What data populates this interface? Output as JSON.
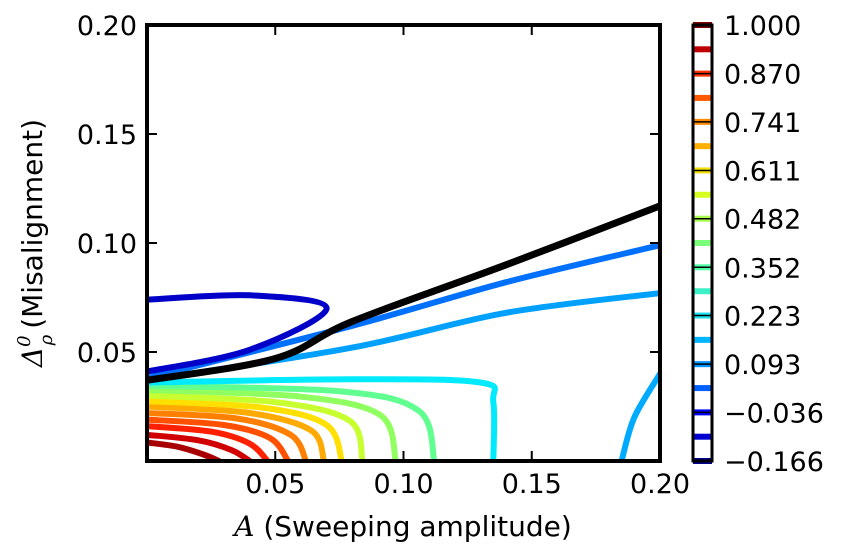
{
  "chart_data": {
    "type": "contour",
    "xlabel_math": "A",
    "xlabel_text": "(Sweeping amplitude)",
    "ylabel_math": "Δ",
    "ylabel_sup": "0",
    "ylabel_sub": "ρ",
    "ylabel_text": "(Misalignment)",
    "xlim": [
      0.0,
      0.2
    ],
    "ylim": [
      0.0,
      0.2
    ],
    "x_ticks": [
      0.05,
      0.1,
      0.15,
      0.2
    ],
    "x_tick_labels": [
      "0.05",
      "0.10",
      "0.15",
      "0.20"
    ],
    "y_ticks": [
      0.05,
      0.1,
      0.15,
      0.2
    ],
    "y_tick_labels": [
      "0.05",
      "0.10",
      "0.15",
      "0.20"
    ],
    "grid": false,
    "colorbar": {
      "tick_values": [
        1.0,
        0.87,
        0.741,
        0.611,
        0.482,
        0.352,
        0.223,
        0.093,
        -0.036,
        -0.166
      ],
      "tick_labels": [
        "1.000",
        "0.870",
        "0.741",
        "0.611",
        "0.482",
        "0.352",
        "0.223",
        "0.093",
        "−0.036",
        "−0.166"
      ],
      "levels": [
        {
          "value": 1.0,
          "color": "#7f0000"
        },
        {
          "value": 0.935,
          "color": "#c00000"
        },
        {
          "value": 0.87,
          "color": "#ff3000"
        },
        {
          "value": 0.805,
          "color": "#ff5a00"
        },
        {
          "value": 0.741,
          "color": "#ff8a00"
        },
        {
          "value": 0.676,
          "color": "#ffb000"
        },
        {
          "value": 0.611,
          "color": "#f4e000"
        },
        {
          "value": 0.546,
          "color": "#d6ff20"
        },
        {
          "value": 0.482,
          "color": "#a8ff4e"
        },
        {
          "value": 0.417,
          "color": "#7cff7a"
        },
        {
          "value": 0.352,
          "color": "#50ffa6"
        },
        {
          "value": 0.288,
          "color": "#3cf0c8"
        },
        {
          "value": 0.223,
          "color": "#1ee0f0"
        },
        {
          "value": 0.158,
          "color": "#00b4ff"
        },
        {
          "value": 0.093,
          "color": "#0096ff"
        },
        {
          "value": 0.029,
          "color": "#0060ff"
        },
        {
          "value": -0.036,
          "color": "#0000ff"
        },
        {
          "value": -0.101,
          "color": "#0000d0"
        },
        {
          "value": -0.166,
          "color": "#00008f"
        }
      ]
    },
    "series": [
      {
        "level": 1.0,
        "color": "#a80000",
        "points": [
          [
            0.0,
            0.0085
          ],
          [
            0.012,
            0.0065
          ],
          [
            0.022,
            0.003
          ],
          [
            0.028,
            0.0
          ]
        ]
      },
      {
        "level": 0.935,
        "color": "#d00000",
        "points": [
          [
            0.0,
            0.012
          ],
          [
            0.02,
            0.0095
          ],
          [
            0.033,
            0.005
          ],
          [
            0.04,
            0.0
          ]
        ]
      },
      {
        "level": 0.87,
        "color": "#ff2000",
        "points": [
          [
            0.0,
            0.016
          ],
          [
            0.025,
            0.0135
          ],
          [
            0.04,
            0.008
          ],
          [
            0.047,
            0.0
          ]
        ]
      },
      {
        "level": 0.805,
        "color": "#ff5000",
        "points": [
          [
            0.0,
            0.019
          ],
          [
            0.03,
            0.0165
          ],
          [
            0.048,
            0.0105
          ],
          [
            0.055,
            0.0
          ]
        ]
      },
      {
        "level": 0.741,
        "color": "#ff8000",
        "points": [
          [
            0.0,
            0.022
          ],
          [
            0.035,
            0.0195
          ],
          [
            0.056,
            0.012
          ],
          [
            0.062,
            0.0
          ]
        ]
      },
      {
        "level": 0.676,
        "color": "#ffaa00",
        "points": [
          [
            0.0,
            0.025
          ],
          [
            0.04,
            0.022
          ],
          [
            0.064,
            0.014
          ],
          [
            0.069,
            0.0
          ]
        ]
      },
      {
        "level": 0.611,
        "color": "#ffe000",
        "points": [
          [
            0.0,
            0.0275
          ],
          [
            0.045,
            0.0245
          ],
          [
            0.07,
            0.0165
          ],
          [
            0.076,
            0.0
          ]
        ]
      },
      {
        "level": 0.546,
        "color": "#c8ff30",
        "points": [
          [
            0.0,
            0.03
          ],
          [
            0.05,
            0.027
          ],
          [
            0.079,
            0.0185
          ],
          [
            0.084,
            0.0
          ]
        ]
      },
      {
        "level": 0.482,
        "color": "#90ff60",
        "points": [
          [
            0.0,
            0.0325
          ],
          [
            0.06,
            0.0295
          ],
          [
            0.091,
            0.021
          ],
          [
            0.097,
            0.0
          ]
        ]
      },
      {
        "level": 0.417,
        "color": "#60ff90",
        "points": [
          [
            0.0,
            0.0345
          ],
          [
            0.075,
            0.032
          ],
          [
            0.106,
            0.023
          ],
          [
            0.112,
            0.0
          ]
        ]
      },
      {
        "level": 0.223,
        "color": "#00eaff",
        "points": [
          [
            0.0,
            0.036
          ],
          [
            0.08,
            0.0375
          ],
          [
            0.13,
            0.036
          ],
          [
            0.135,
            0.027
          ],
          [
            0.135,
            0.0
          ]
        ]
      },
      {
        "level": 0.093,
        "color": "#00aaff",
        "points": [
          [
            0.185,
            0.0
          ],
          [
            0.19,
            0.02
          ],
          [
            0.2,
            0.04
          ]
        ]
      },
      {
        "level": 0.158,
        "color": "#00a0ff",
        "points": [
          [
            0.0,
            0.037
          ],
          [
            0.08,
            0.052
          ],
          [
            0.14,
            0.068
          ],
          [
            0.2,
            0.077
          ]
        ]
      },
      {
        "level": 0.029,
        "color": "#0070ff",
        "points": [
          [
            0.0,
            0.038
          ],
          [
            0.08,
            0.062
          ],
          [
            0.14,
            0.082
          ],
          [
            0.2,
            0.099
          ]
        ]
      },
      {
        "level": -0.036,
        "color": "#000000",
        "points": [
          [
            0.0,
            0.037
          ],
          [
            0.05,
            0.047
          ],
          [
            0.08,
            0.064
          ],
          [
            0.14,
            0.09
          ],
          [
            0.2,
            0.117
          ]
        ]
      },
      {
        "level": -0.101,
        "color": "#0000c8",
        "points": [
          [
            0.0,
            0.074
          ],
          [
            0.04,
            0.076
          ],
          [
            0.07,
            0.07
          ],
          [
            0.04,
            0.051
          ],
          [
            0.0,
            0.041
          ]
        ]
      }
    ]
  }
}
